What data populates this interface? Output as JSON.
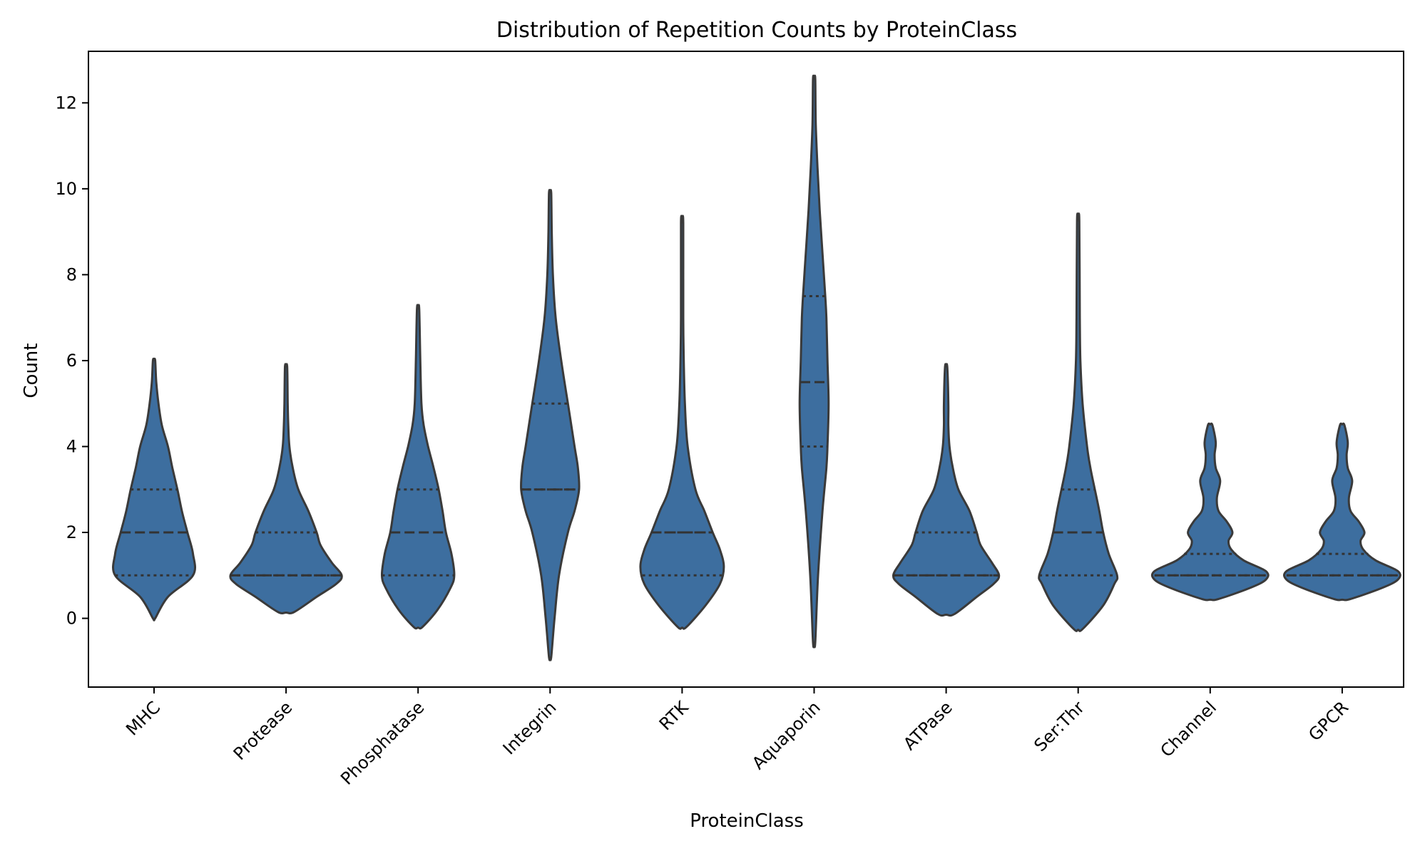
{
  "chart_data": {
    "type": "violin",
    "title": "Distribution of Repetition Counts by ProteinClass",
    "xlabel": "ProteinClass",
    "ylabel": "Count",
    "ylim": [
      -1.6,
      13.2
    ],
    "yticks": [
      0,
      2,
      4,
      6,
      8,
      10,
      12
    ],
    "grid": false,
    "color": "#3d6e9f",
    "inner": "quartile",
    "categories": [
      "MHC",
      "Protease",
      "Phosphatase",
      "Integrin",
      "RTK",
      "Aquaporin",
      "ATPase",
      "Ser:Thr",
      "Channel",
      "GPCR"
    ],
    "violins": [
      {
        "category": "MHC",
        "min": 0.0,
        "max": 6.0,
        "q1": 1.0,
        "median": 2.0,
        "q3": 3.0,
        "density": [
          [
            0.0,
            0.02
          ],
          [
            0.5,
            0.25
          ],
          [
            1.0,
            0.7
          ],
          [
            1.5,
            0.7
          ],
          [
            2.0,
            0.6
          ],
          [
            2.5,
            0.5
          ],
          [
            3.0,
            0.42
          ],
          [
            3.5,
            0.33
          ],
          [
            4.0,
            0.25
          ],
          [
            4.5,
            0.14
          ],
          [
            5.0,
            0.08
          ],
          [
            5.5,
            0.04
          ],
          [
            6.0,
            0.02
          ]
        ]
      },
      {
        "category": "Protease",
        "min": 0.15,
        "max": 5.85,
        "q1": 1.0,
        "median": 1.0,
        "q3": 2.0,
        "density": [
          [
            0.15,
            0.15
          ],
          [
            0.5,
            0.55
          ],
          [
            0.8,
            0.9
          ],
          [
            1.0,
            1.0
          ],
          [
            1.3,
            0.82
          ],
          [
            1.7,
            0.62
          ],
          [
            2.0,
            0.55
          ],
          [
            2.5,
            0.4
          ],
          [
            3.0,
            0.22
          ],
          [
            3.5,
            0.12
          ],
          [
            4.0,
            0.06
          ],
          [
            4.5,
            0.04
          ],
          [
            5.0,
            0.03
          ],
          [
            5.85,
            0.02
          ]
        ]
      },
      {
        "category": "Phosphatase",
        "min": -0.2,
        "max": 7.2,
        "q1": 1.0,
        "median": 2.0,
        "q3": 3.0,
        "density": [
          [
            -0.2,
            0.08
          ],
          [
            0.2,
            0.35
          ],
          [
            0.7,
            0.58
          ],
          [
            1.0,
            0.65
          ],
          [
            1.5,
            0.6
          ],
          [
            2.0,
            0.5
          ],
          [
            2.5,
            0.44
          ],
          [
            3.0,
            0.37
          ],
          [
            3.5,
            0.28
          ],
          [
            4.0,
            0.18
          ],
          [
            4.5,
            0.1
          ],
          [
            5.0,
            0.06
          ],
          [
            6.0,
            0.04
          ],
          [
            7.2,
            0.02
          ]
        ]
      },
      {
        "category": "Integrin",
        "min": -0.9,
        "max": 9.9,
        "q1": 3.0,
        "median": 3.0,
        "q3": 5.0,
        "density": [
          [
            -0.9,
            0.02
          ],
          [
            0.0,
            0.08
          ],
          [
            1.0,
            0.16
          ],
          [
            2.0,
            0.32
          ],
          [
            2.5,
            0.44
          ],
          [
            3.0,
            0.52
          ],
          [
            3.5,
            0.5
          ],
          [
            4.0,
            0.44
          ],
          [
            5.0,
            0.32
          ],
          [
            6.0,
            0.2
          ],
          [
            7.0,
            0.1
          ],
          [
            8.0,
            0.05
          ],
          [
            9.0,
            0.03
          ],
          [
            9.9,
            0.02
          ]
        ]
      },
      {
        "category": "RTK",
        "min": -0.2,
        "max": 9.2,
        "q1": 1.0,
        "median": 2.0,
        "q3": 2.0,
        "density": [
          [
            -0.2,
            0.08
          ],
          [
            0.3,
            0.42
          ],
          [
            0.8,
            0.68
          ],
          [
            1.2,
            0.75
          ],
          [
            1.6,
            0.68
          ],
          [
            2.0,
            0.55
          ],
          [
            2.5,
            0.4
          ],
          [
            3.0,
            0.24
          ],
          [
            4.0,
            0.1
          ],
          [
            5.0,
            0.05
          ],
          [
            6.0,
            0.03
          ],
          [
            7.0,
            0.02
          ],
          [
            9.2,
            0.02
          ]
        ]
      },
      {
        "category": "Aquaporin",
        "min": -0.55,
        "max": 12.55,
        "q1": 4.0,
        "median": 5.5,
        "q3": 7.5,
        "density": [
          [
            -0.55,
            0.02
          ],
          [
            1.0,
            0.07
          ],
          [
            2.5,
            0.15
          ],
          [
            3.5,
            0.22
          ],
          [
            4.0,
            0.24
          ],
          [
            5.0,
            0.26
          ],
          [
            6.0,
            0.24
          ],
          [
            7.0,
            0.22
          ],
          [
            7.5,
            0.2
          ],
          [
            8.5,
            0.15
          ],
          [
            9.5,
            0.1
          ],
          [
            10.5,
            0.06
          ],
          [
            11.5,
            0.03
          ],
          [
            12.55,
            0.02
          ]
        ]
      },
      {
        "category": "ATPase",
        "min": 0.1,
        "max": 5.85,
        "q1": 1.0,
        "median": 1.0,
        "q3": 2.0,
        "density": [
          [
            0.1,
            0.15
          ],
          [
            0.5,
            0.55
          ],
          [
            0.8,
            0.85
          ],
          [
            1.0,
            0.95
          ],
          [
            1.3,
            0.82
          ],
          [
            1.7,
            0.62
          ],
          [
            2.0,
            0.55
          ],
          [
            2.5,
            0.42
          ],
          [
            3.0,
            0.22
          ],
          [
            3.5,
            0.12
          ],
          [
            4.0,
            0.06
          ],
          [
            4.5,
            0.04
          ],
          [
            5.0,
            0.04
          ],
          [
            5.85,
            0.02
          ]
        ]
      },
      {
        "category": "Ser:Thr",
        "min": -0.25,
        "max": 9.25,
        "q1": 1.0,
        "median": 2.0,
        "q3": 3.0,
        "density": [
          [
            -0.25,
            0.08
          ],
          [
            0.3,
            0.45
          ],
          [
            0.8,
            0.65
          ],
          [
            1.0,
            0.7
          ],
          [
            1.5,
            0.55
          ],
          [
            2.0,
            0.45
          ],
          [
            2.5,
            0.38
          ],
          [
            3.0,
            0.3
          ],
          [
            3.5,
            0.22
          ],
          [
            4.0,
            0.16
          ],
          [
            5.0,
            0.08
          ],
          [
            6.0,
            0.04
          ],
          [
            7.0,
            0.03
          ],
          [
            9.25,
            0.02
          ]
        ]
      },
      {
        "category": "Channel",
        "min": 0.45,
        "max": 4.5,
        "q1": 1.0,
        "median": 1.0,
        "q3": 1.5,
        "density": [
          [
            0.45,
            0.15
          ],
          [
            0.7,
            0.7
          ],
          [
            0.9,
            1.0
          ],
          [
            1.1,
            1.0
          ],
          [
            1.35,
            0.6
          ],
          [
            1.6,
            0.38
          ],
          [
            1.8,
            0.33
          ],
          [
            2.0,
            0.4
          ],
          [
            2.25,
            0.3
          ],
          [
            2.5,
            0.15
          ],
          [
            2.8,
            0.12
          ],
          [
            3.2,
            0.18
          ],
          [
            3.5,
            0.1
          ],
          [
            3.8,
            0.08
          ],
          [
            4.1,
            0.1
          ],
          [
            4.5,
            0.04
          ]
        ]
      },
      {
        "category": "GPCR",
        "min": 0.45,
        "max": 4.5,
        "q1": 1.0,
        "median": 1.0,
        "q3": 1.5,
        "density": [
          [
            0.45,
            0.15
          ],
          [
            0.7,
            0.7
          ],
          [
            0.9,
            1.0
          ],
          [
            1.1,
            1.0
          ],
          [
            1.35,
            0.6
          ],
          [
            1.6,
            0.38
          ],
          [
            1.8,
            0.33
          ],
          [
            2.0,
            0.4
          ],
          [
            2.25,
            0.3
          ],
          [
            2.5,
            0.15
          ],
          [
            2.8,
            0.12
          ],
          [
            3.2,
            0.18
          ],
          [
            3.5,
            0.1
          ],
          [
            3.8,
            0.08
          ],
          [
            4.1,
            0.1
          ],
          [
            4.5,
            0.04
          ]
        ]
      }
    ]
  }
}
